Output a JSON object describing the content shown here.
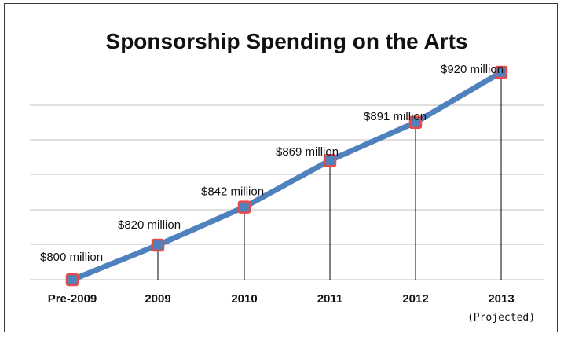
{
  "chart_data": {
    "type": "line",
    "title": "Sponsorship Spending on the Arts",
    "categories": [
      "Pre-2009",
      "2009",
      "2010",
      "2011",
      "2012",
      "2013"
    ],
    "category_sublabels": [
      "",
      "",
      "",
      "",
      "",
      "(Projected)"
    ],
    "values": [
      800,
      820,
      842,
      869,
      891,
      920
    ],
    "data_labels": [
      "$800 million",
      "$820 million",
      "$842 million",
      "$869 million",
      "$891 million",
      "$920 million"
    ],
    "ylim": [
      800,
      920
    ],
    "xlabel": "",
    "ylabel": "",
    "grid": true,
    "legend": "none",
    "colors": {
      "line": "#4f81bd",
      "marker_fill": "#4f81bd",
      "marker_edge": "#e84a4a",
      "grid": "#bfbfbf"
    }
  }
}
